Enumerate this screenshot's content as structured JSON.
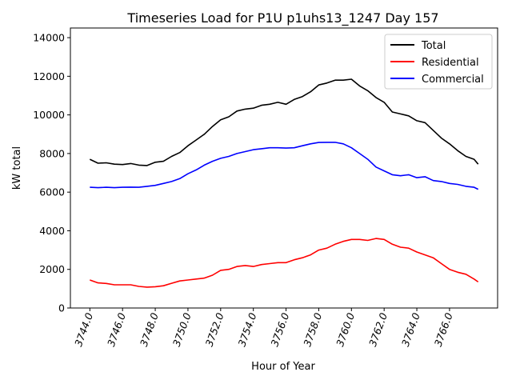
{
  "chart_data": {
    "type": "line",
    "title": "Timeseries Load for P1U p1uhs13_1247  Day 157",
    "xlabel": "Hour of Year",
    "ylabel": "kW total",
    "xlim": [
      3742.81,
      3768.94
    ],
    "ylim": [
      0,
      14500
    ],
    "grid": false,
    "legend_position": "top-right",
    "xticks": [
      3744,
      3746,
      3748,
      3750,
      3752,
      3754,
      3756,
      3758,
      3760,
      3762,
      3764,
      3766
    ],
    "xtick_labels": [
      "3744.0",
      "3746.0",
      "3748.0",
      "3750.0",
      "3752.0",
      "3754.0",
      "3756.0",
      "3758.0",
      "3760.0",
      "3762.0",
      "3764.0",
      "3766.0"
    ],
    "yticks": [
      0,
      2000,
      4000,
      6000,
      8000,
      10000,
      12000,
      14000
    ],
    "ytick_labels": [
      "0",
      "2000",
      "4000",
      "6000",
      "8000",
      "10000",
      "12000",
      "14000"
    ],
    "x": [
      3744,
      3744.5,
      3745,
      3745.5,
      3746,
      3746.5,
      3747,
      3747.5,
      3748,
      3748.5,
      3749,
      3749.5,
      3750,
      3750.5,
      3751,
      3751.5,
      3752,
      3752.5,
      3753,
      3753.5,
      3754,
      3754.5,
      3755,
      3755.5,
      3756,
      3756.5,
      3757,
      3757.5,
      3758,
      3758.5,
      3759,
      3759.5,
      3760,
      3760.5,
      3761,
      3761.5,
      3762,
      3762.5,
      3763,
      3763.5,
      3764,
      3764.5,
      3765,
      3765.5,
      3766,
      3766.5,
      3767,
      3767.5,
      3767.75
    ],
    "series": [
      {
        "name": "Total",
        "color": "#000000",
        "values": [
          7700,
          7500,
          7520,
          7450,
          7430,
          7480,
          7400,
          7380,
          7550,
          7600,
          7850,
          8050,
          8400,
          8700,
          9000,
          9400,
          9750,
          9900,
          10200,
          10300,
          10350,
          10500,
          10550,
          10650,
          10550,
          10800,
          10950,
          11200,
          11550,
          11650,
          11800,
          11800,
          11850,
          11500,
          11250,
          10900,
          10650,
          10150,
          10050,
          9950,
          9700,
          9600,
          9200,
          8800,
          8500,
          8150,
          7850,
          7700,
          7450
        ]
      },
      {
        "name": "Residential",
        "color": "#ff0000",
        "values": [
          1450,
          1300,
          1270,
          1200,
          1200,
          1200,
          1120,
          1080,
          1100,
          1150,
          1280,
          1400,
          1450,
          1500,
          1550,
          1700,
          1950,
          2000,
          2150,
          2200,
          2150,
          2250,
          2300,
          2350,
          2350,
          2500,
          2600,
          2750,
          3000,
          3100,
          3300,
          3450,
          3550,
          3550,
          3500,
          3600,
          3550,
          3300,
          3150,
          3100,
          2900,
          2750,
          2600,
          2300,
          2000,
          1850,
          1750,
          1500,
          1350
        ]
      },
      {
        "name": "Commercial",
        "color": "#0000ff",
        "values": [
          6250,
          6230,
          6250,
          6230,
          6250,
          6260,
          6250,
          6300,
          6350,
          6450,
          6550,
          6700,
          6950,
          7150,
          7400,
          7600,
          7750,
          7850,
          8000,
          8100,
          8200,
          8250,
          8300,
          8300,
          8280,
          8300,
          8400,
          8500,
          8570,
          8580,
          8580,
          8500,
          8300,
          8000,
          7700,
          7300,
          7100,
          6900,
          6850,
          6900,
          6750,
          6800,
          6600,
          6550,
          6450,
          6400,
          6300,
          6250,
          6150
        ]
      }
    ]
  }
}
